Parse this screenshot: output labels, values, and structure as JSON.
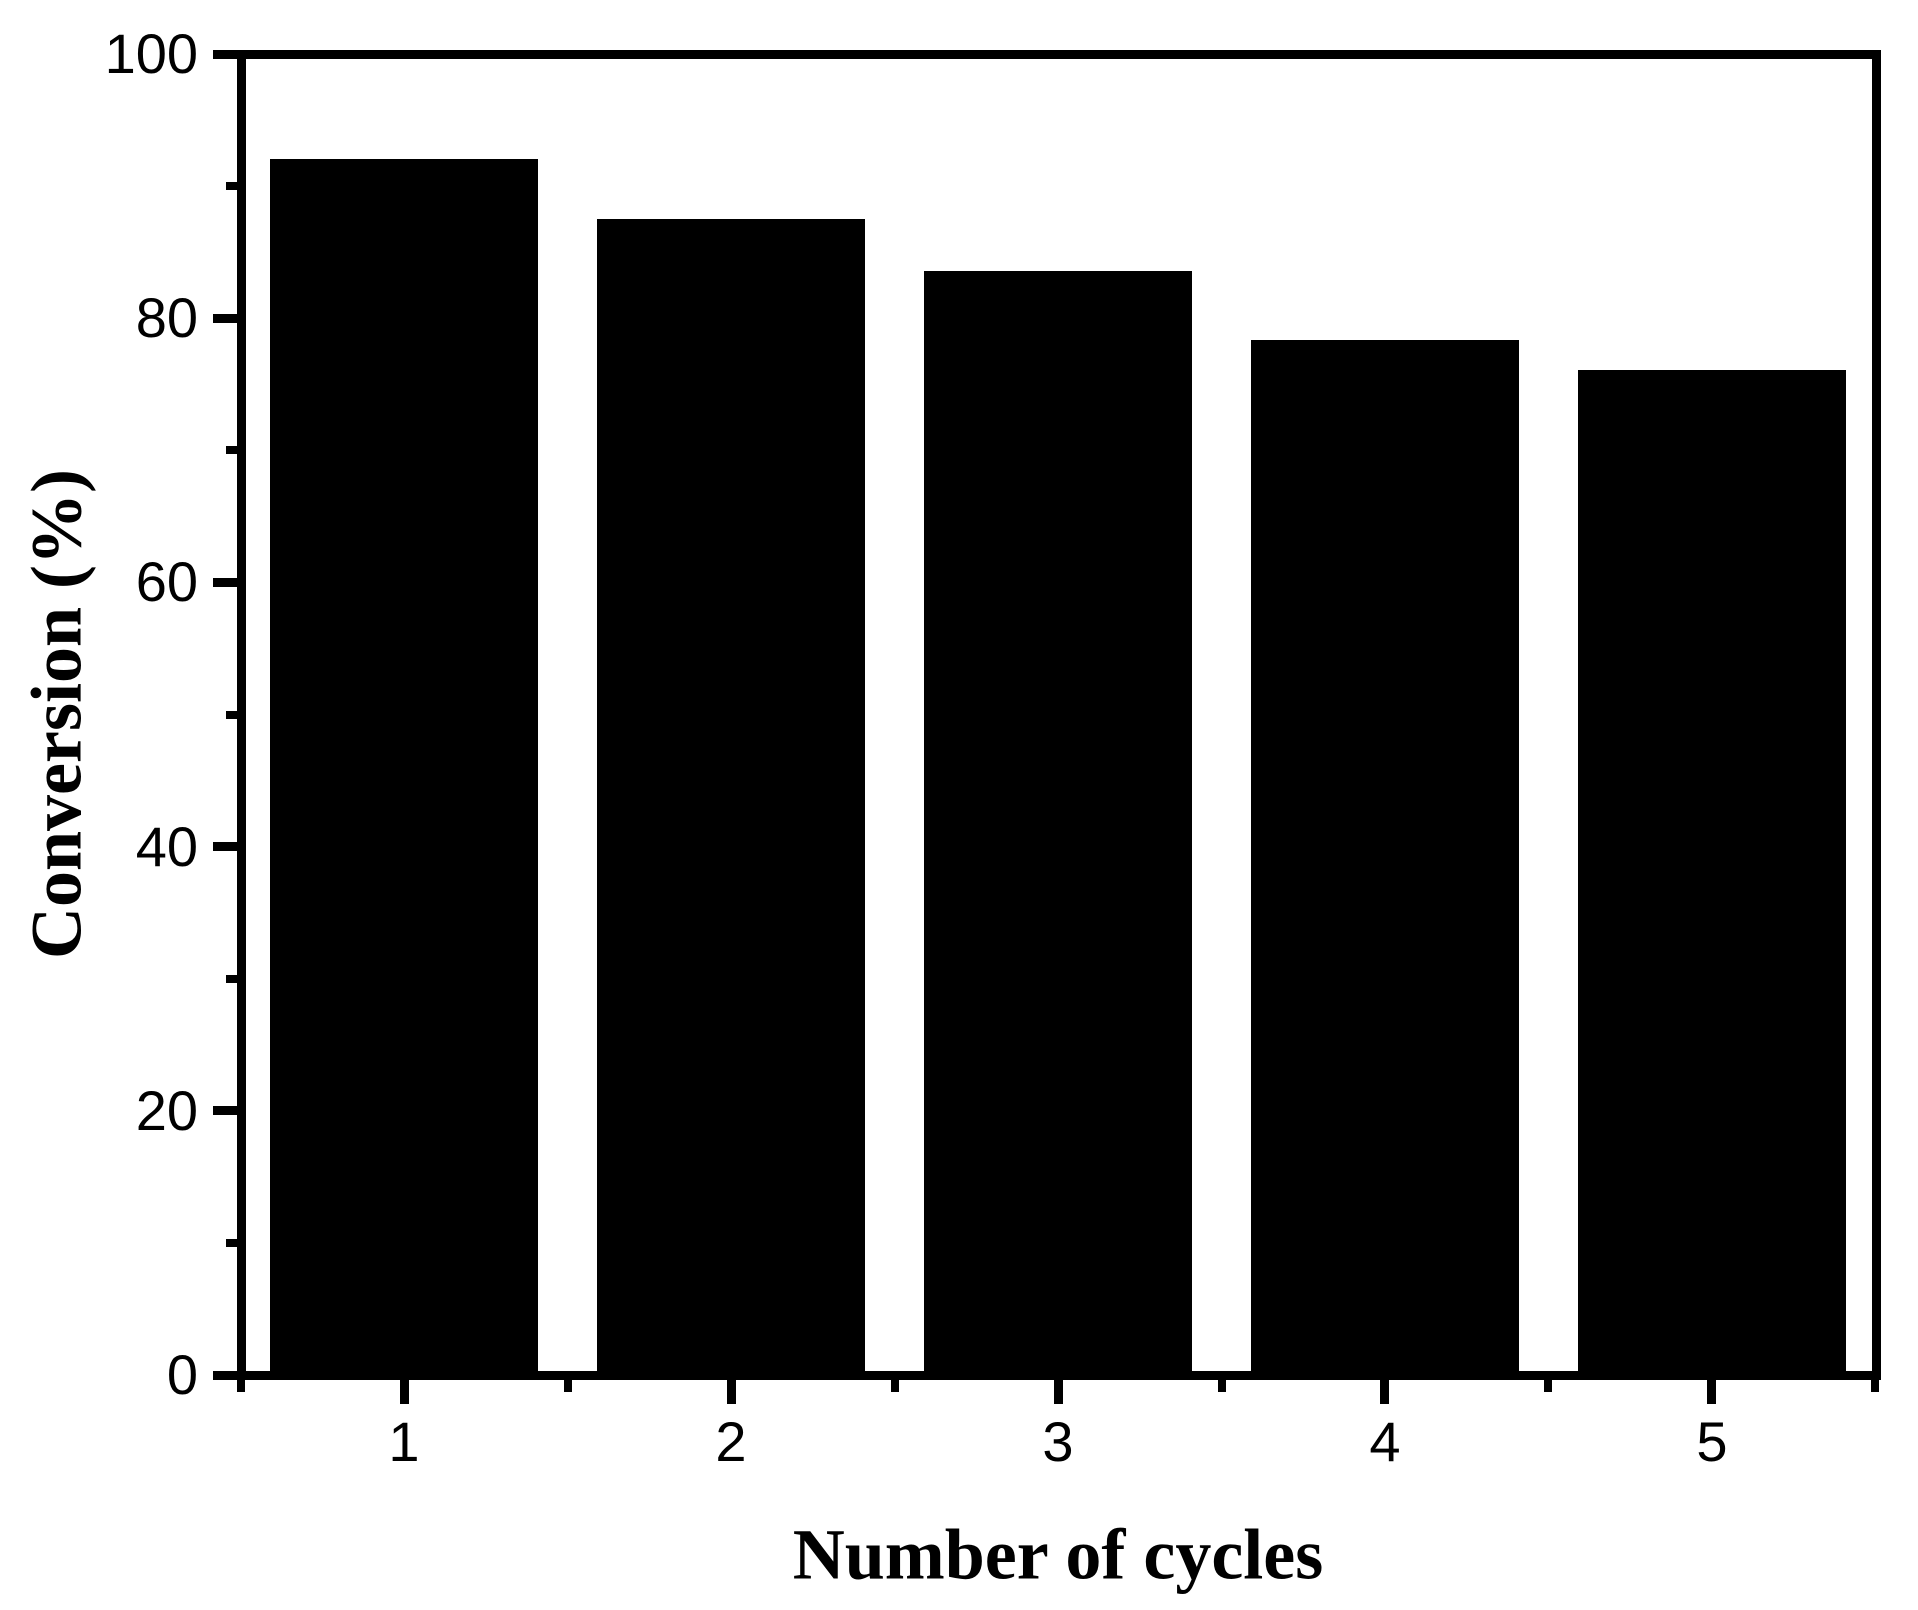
{
  "chart_data": {
    "type": "bar",
    "title": "",
    "xlabel": "Number of cycles",
    "ylabel": "Conversion (%)",
    "categories": [
      "1",
      "2",
      "3",
      "4",
      "5"
    ],
    "values": [
      92,
      87.5,
      83.5,
      78.3,
      76
    ],
    "series_name": "Conversion",
    "xlim": [
      0.5,
      5.5
    ],
    "ylim": [
      0,
      100
    ],
    "y_major_ticks": [
      0,
      20,
      40,
      60,
      80,
      100
    ],
    "y_minor_ticks": [
      10,
      30,
      50,
      70,
      90
    ],
    "x_major_tick_positions": [
      1,
      2,
      3,
      4,
      5
    ],
    "x_minor_tick_positions": [
      0.5,
      1.5,
      2.5,
      3.5,
      4.5,
      5.5
    ],
    "grid": false,
    "legend": "none",
    "tick_direction": "out",
    "frame": "full-box",
    "bar_color": "#000000",
    "background_color": "#ffffff",
    "bar_width_fraction": 0.82
  }
}
